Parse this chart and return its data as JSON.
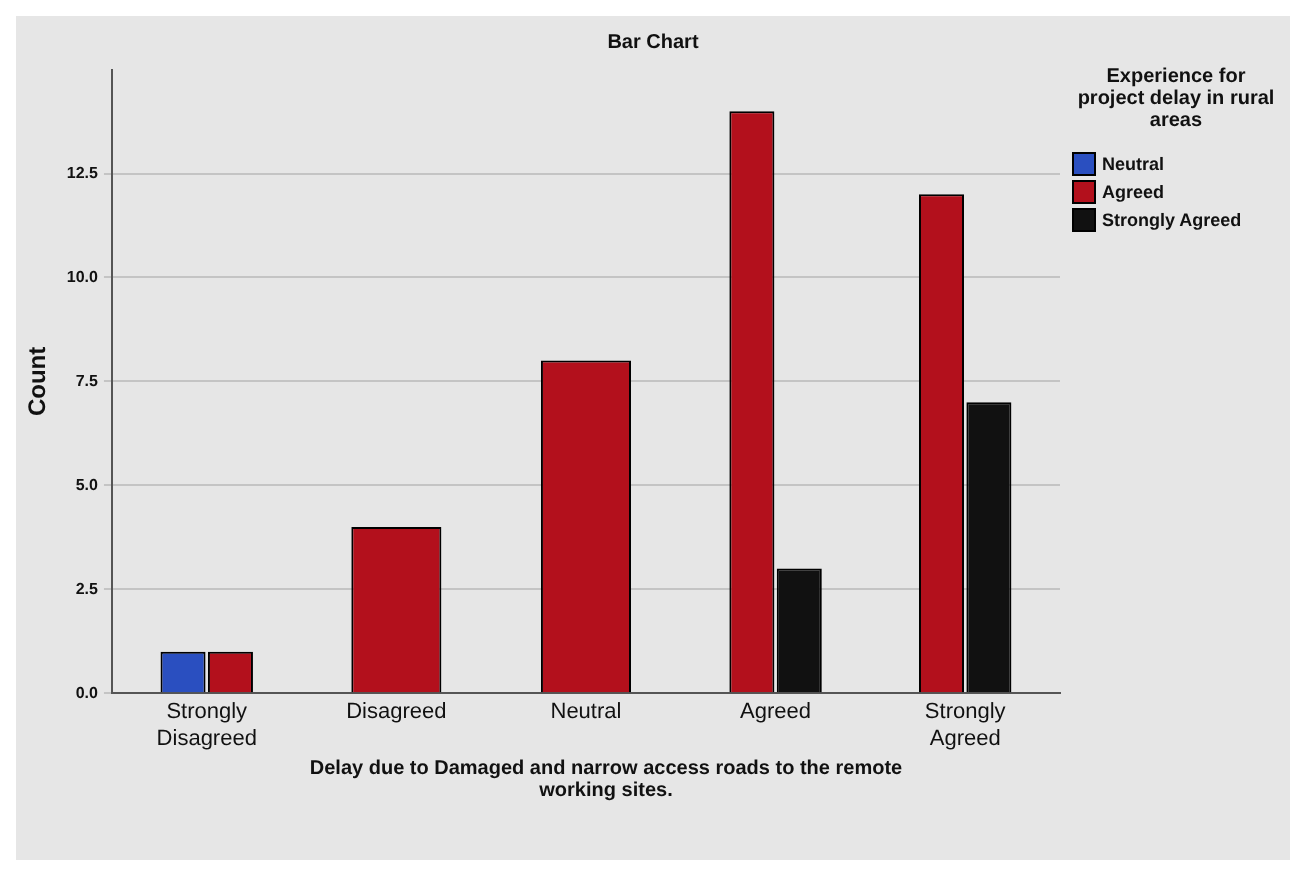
{
  "chart_data": {
    "type": "bar",
    "title": "Bar Chart",
    "xlabel": "Delay due to Damaged and narrow access roads to the remote working sites.",
    "ylabel": "Count",
    "legend_title": "Experience for project delay in rural areas",
    "categories": [
      "Strongly Disagreed",
      "Disagreed",
      "Neutral",
      "Agreed",
      "Strongly Agreed"
    ],
    "series": [
      {
        "name": "Neutral",
        "color": "#2a4fc0",
        "values": [
          1,
          null,
          null,
          null,
          null
        ]
      },
      {
        "name": "Agreed",
        "color": "#b3101c",
        "values": [
          1,
          4,
          8,
          14,
          12
        ]
      },
      {
        "name": "Strongly Agreed",
        "color": "#111111",
        "values": [
          null,
          null,
          null,
          3,
          7
        ]
      }
    ],
    "ylim": [
      0,
      15
    ],
    "yticks": [
      {
        "value": 0,
        "label": "0.0"
      },
      {
        "value": 2.5,
        "label": "2.5"
      },
      {
        "value": 5,
        "label": "5.0"
      },
      {
        "value": 7.5,
        "label": "7.5"
      },
      {
        "value": 10,
        "label": "10.0"
      },
      {
        "value": 12.5,
        "label": "12.5"
      }
    ],
    "grid": "y",
    "legend": "right"
  }
}
